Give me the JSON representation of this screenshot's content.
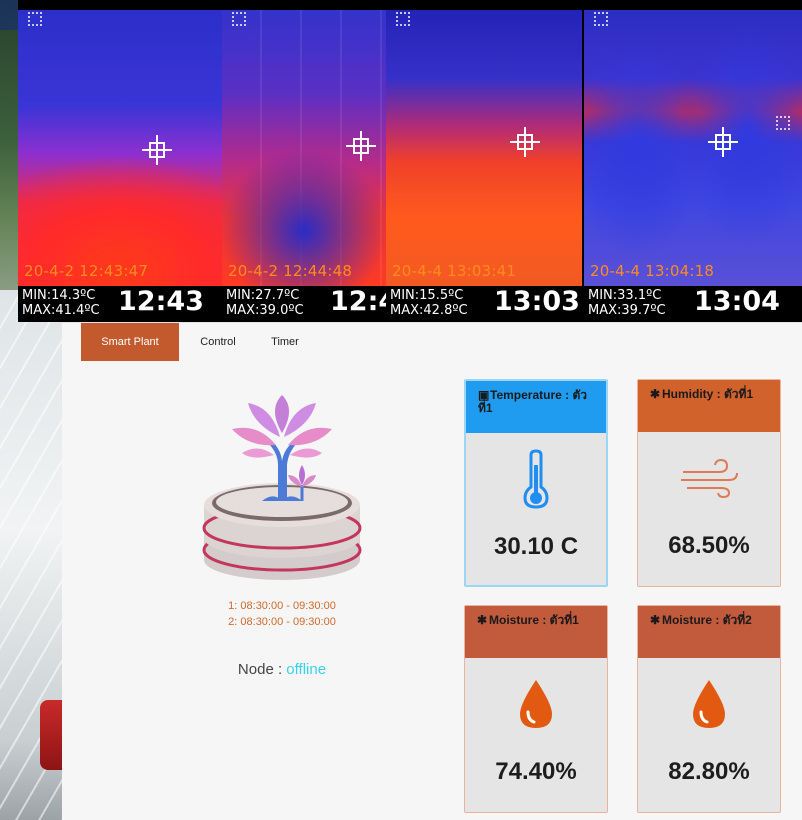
{
  "thermal_images": [
    {
      "timestamp": "20-4-2 12:43:47",
      "min": "MIN:14.3ºC",
      "max": "MAX:41.4ºC",
      "clock": "12:43"
    },
    {
      "timestamp": "20-4-2 12:44:48",
      "min": "MIN:27.7ºC",
      "max": "MAX:39.0ºC",
      "clock": "12:4"
    },
    {
      "timestamp": "20-4-4 13:03:41",
      "min": "MIN:15.5ºC",
      "max": "MAX:42.8ºC",
      "clock": "13:03"
    },
    {
      "timestamp": "20-4-4 13:04:18",
      "min": "MIN:33.1ºC",
      "max": "MAX:39.7ºC",
      "clock": "13:04"
    }
  ],
  "tabs": [
    {
      "label": "Smart Plant",
      "active": true
    },
    {
      "label": "Control",
      "active": false
    },
    {
      "label": "Timer",
      "active": false
    }
  ],
  "schedule": [
    "1: 08:30:00 - 09:30:00",
    "2: 08:30:00 - 09:30:00"
  ],
  "node": {
    "label": "Node : ",
    "status": "offline"
  },
  "cards": {
    "temperature": {
      "title": "Temperature : ตัวที่1",
      "value": "30.10 C",
      "icon": "thermometer-icon"
    },
    "humidity": {
      "title": "Humidity : ตัวที่1",
      "value": "68.50%",
      "icon": "wind-icon"
    },
    "moisture1": {
      "title": "Moisture : ตัวที่1",
      "value": "74.40%",
      "icon": "water-drop-icon"
    },
    "moisture2": {
      "title": "Moisture : ตัวที่2",
      "value": "82.80%",
      "icon": "water-drop-icon"
    }
  },
  "colors": {
    "accent": "#c25a2d",
    "temperature_header": "#1f9bf0",
    "humidity_header": "#d2622c",
    "moisture_header": "#c25a3c",
    "offline": "#38d3e8"
  }
}
